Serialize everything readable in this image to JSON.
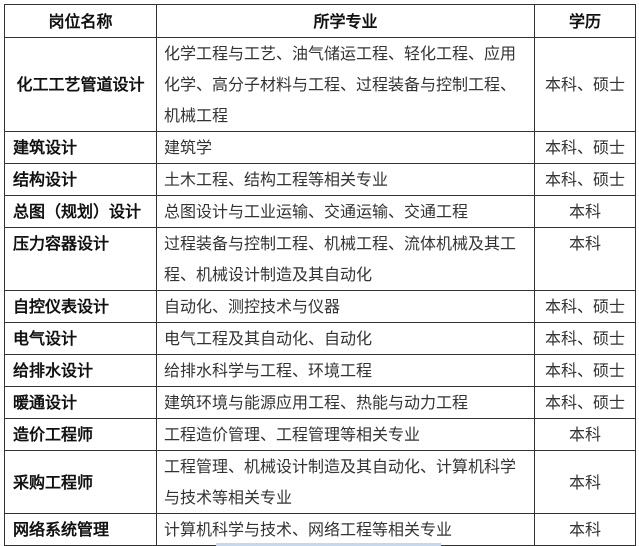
{
  "headers": [
    "岗位名称",
    "所学专业",
    "学历"
  ],
  "rows": [
    {
      "position": "化工工艺管道设计",
      "major": "化学工程与工艺、油气储运工程、轻化工程、应用化学、高分子材料与工程、过程装备与控制工程、机械工程",
      "education": "本科、硕士"
    },
    {
      "position": "建筑设计",
      "major": "建筑学",
      "education": "本科、硕士"
    },
    {
      "position": "结构设计",
      "major": "土木工程、结构工程等相关专业",
      "education": "本科、硕士"
    },
    {
      "position": "总图（规划）设计",
      "major": "总图设计与工业运输、交通运输、交通工程",
      "education": "本科"
    },
    {
      "position": "压力容器设计",
      "major": "过程装备与控制工程、机械工程、流体机械及其工程、机械设计制造及其自动化",
      "education": "本科"
    },
    {
      "position": "自控仪表设计",
      "major": "自动化、测控技术与仪器",
      "education": "本科、硕士"
    },
    {
      "position": "电气设计",
      "major": "电气工程及其自动化、自动化",
      "education": "本科、硕士"
    },
    {
      "position": "给排水设计",
      "major": "给排水科学与工程、环境工程",
      "education": "本科、硕士"
    },
    {
      "position": "暖通设计",
      "major": "建筑环境与能源应用工程、热能与动力工程",
      "education": "本科、硕士"
    },
    {
      "position": "造价工程师",
      "major": "工程造价管理、工程管理等相关专业",
      "education": "本科"
    },
    {
      "position": "采购工程师",
      "major": "工程管理、机械设计制造及其自动化、计算机科学与技术等相关专业",
      "education": "本科"
    },
    {
      "position": "网络系统管理",
      "major": "计算机科学与技术、网络工程等相关专业",
      "education": "本科"
    }
  ]
}
